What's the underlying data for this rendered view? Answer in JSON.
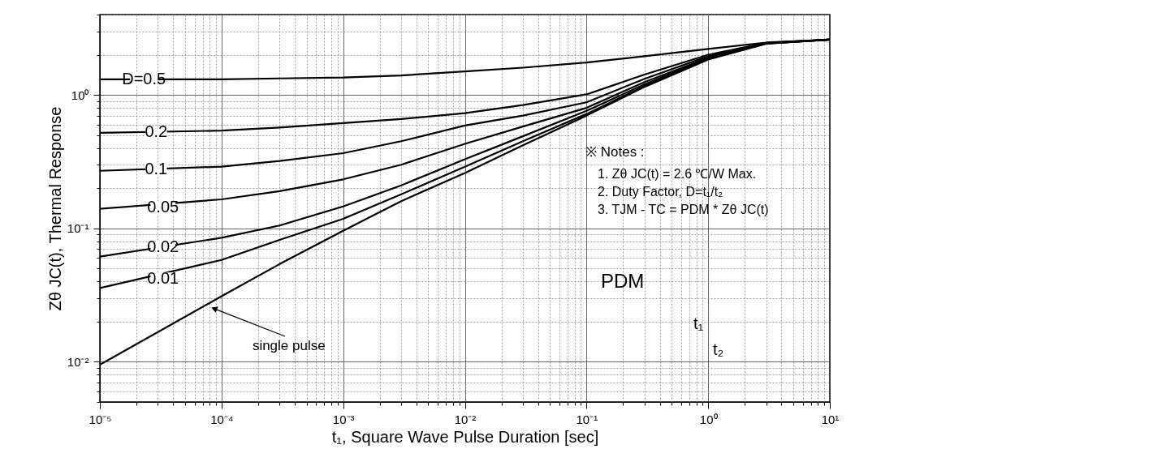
{
  "chart_data": {
    "type": "line",
    "xlabel": "t₁, Square Wave Pulse Duration [sec]",
    "ylabel": "Zθ JC(t), Thermal Response",
    "log": "xy",
    "grid": true,
    "marker": "none",
    "line_style": "solid",
    "x": [
      1e-05,
      0.0001,
      0.0003,
      0.001,
      0.003,
      0.01,
      0.03,
      0.1,
      0.3,
      1,
      3,
      10
    ],
    "series": [
      {
        "color": "#000000",
        "values": [
          1.31,
          1.31,
          1.33,
          1.35,
          1.4,
          1.5,
          1.6,
          1.75,
          1.95,
          2.21,
          2.47,
          2.6
        ]
      },
      {
        "color": "#000000",
        "values": [
          0.52,
          0.54,
          0.57,
          0.615,
          0.66,
          0.73,
          0.84,
          1.01,
          1.42,
          2.0,
          2.46,
          2.6
        ]
      },
      {
        "color": "#000000",
        "values": [
          0.27,
          0.29,
          0.32,
          0.366,
          0.45,
          0.59,
          0.7,
          0.88,
          1.32,
          1.95,
          2.45,
          2.6
        ]
      },
      {
        "color": "#000000",
        "values": [
          0.14,
          0.165,
          0.19,
          0.233,
          0.3,
          0.43,
          0.58,
          0.8,
          1.25,
          1.9,
          2.44,
          2.6
        ]
      },
      {
        "color": "#000000",
        "values": [
          0.0615,
          0.085,
          0.105,
          0.146,
          0.21,
          0.33,
          0.49,
          0.76,
          1.2,
          1.88,
          2.43,
          2.6
        ]
      },
      {
        "color": "#000000",
        "values": [
          0.0357,
          0.058,
          0.082,
          0.118,
          0.18,
          0.29,
          0.45,
          0.72,
          1.17,
          1.86,
          2.43,
          2.6
        ]
      },
      {
        "color": "#000000",
        "values": [
          0.0095,
          0.031,
          0.054,
          0.096,
          0.16,
          0.26,
          0.42,
          0.7,
          1.15,
          1.84,
          2.42,
          2.6
        ]
      }
    ],
    "xlim": [
      1e-05,
      10
    ],
    "ylim": [
      0.005,
      4
    ],
    "xticks": [
      {
        "value": 1e-05,
        "label": "10⁻⁵"
      },
      {
        "value": 2e-05,
        "label": null
      },
      {
        "value": 3e-05,
        "label": null
      },
      {
        "value": 4e-05,
        "label": null
      },
      {
        "value": 5e-05,
        "label": null
      },
      {
        "value": 6e-05,
        "label": null
      },
      {
        "value": 7e-05,
        "label": null
      },
      {
        "value": 8e-05,
        "label": null
      },
      {
        "value": 9e-05,
        "label": null
      },
      {
        "value": 0.0001,
        "label": "10⁻⁴"
      },
      {
        "value": 0.0002,
        "label": null
      },
      {
        "value": 0.0003,
        "label": null
      },
      {
        "value": 0.0004,
        "label": null
      },
      {
        "value": 0.0005,
        "label": null
      },
      {
        "value": 0.0006,
        "label": null
      },
      {
        "value": 0.0007,
        "label": null
      },
      {
        "value": 0.0008,
        "label": null
      },
      {
        "value": 0.0009,
        "label": null
      },
      {
        "value": 0.001,
        "label": "10⁻³"
      },
      {
        "value": 0.002,
        "label": null
      },
      {
        "value": 0.003,
        "label": null
      },
      {
        "value": 0.004,
        "label": null
      },
      {
        "value": 0.005,
        "label": null
      },
      {
        "value": 0.006,
        "label": null
      },
      {
        "value": 0.007,
        "label": null
      },
      {
        "value": 0.008,
        "label": null
      },
      {
        "value": 0.009,
        "label": null
      },
      {
        "value": 0.01,
        "label": "10⁻²"
      },
      {
        "value": 0.02,
        "label": null
      },
      {
        "value": 0.03,
        "label": null
      },
      {
        "value": 0.04,
        "label": null
      },
      {
        "value": 0.05,
        "label": null
      },
      {
        "value": 0.06,
        "label": null
      },
      {
        "value": 0.07,
        "label": null
      },
      {
        "value": 0.08,
        "label": null
      },
      {
        "value": 0.09,
        "label": null
      },
      {
        "value": 0.1,
        "label": "10⁻¹"
      },
      {
        "value": 0.2,
        "label": null
      },
      {
        "value": 0.3,
        "label": null
      },
      {
        "value": 0.4,
        "label": null
      },
      {
        "value": 0.5,
        "label": null
      },
      {
        "value": 0.6,
        "label": null
      },
      {
        "value": 0.7,
        "label": null
      },
      {
        "value": 0.8,
        "label": null
      },
      {
        "value": 0.9,
        "label": null
      },
      {
        "value": 1,
        "label": "10⁰"
      },
      {
        "value": 2,
        "label": null
      },
      {
        "value": 3,
        "label": null
      },
      {
        "value": 4,
        "label": null
      },
      {
        "value": 5,
        "label": null
      },
      {
        "value": 6,
        "label": null
      },
      {
        "value": 7,
        "label": null
      },
      {
        "value": 8,
        "label": null
      },
      {
        "value": 9,
        "label": null
      },
      {
        "value": 10,
        "label": "10¹"
      }
    ],
    "yticks": [
      {
        "value": 0.005,
        "label": null
      },
      {
        "value": 0.006,
        "label": null
      },
      {
        "value": 0.007,
        "label": null
      },
      {
        "value": 0.008,
        "label": null
      },
      {
        "value": 0.009,
        "label": null
      },
      {
        "value": 0.01,
        "label": "10⁻²"
      },
      {
        "value": 0.02,
        "label": null
      },
      {
        "value": 0.03,
        "label": null
      },
      {
        "value": 0.04,
        "label": null
      },
      {
        "value": 0.05,
        "label": null
      },
      {
        "value": 0.06,
        "label": null
      },
      {
        "value": 0.07,
        "label": null
      },
      {
        "value": 0.08,
        "label": null
      },
      {
        "value": 0.09,
        "label": null
      },
      {
        "value": 0.1,
        "label": "10⁻¹"
      },
      {
        "value": 0.2,
        "label": null
      },
      {
        "value": 0.3,
        "label": null
      },
      {
        "value": 0.4,
        "label": null
      },
      {
        "value": 0.5,
        "label": null
      },
      {
        "value": 0.6,
        "label": null
      },
      {
        "value": 0.7,
        "label": null
      },
      {
        "value": 0.8,
        "label": null
      },
      {
        "value": 0.9,
        "label": null
      },
      {
        "value": 1,
        "label": "10⁰"
      },
      {
        "value": 2,
        "label": null
      },
      {
        "value": 3,
        "label": null
      },
      {
        "value": 4,
        "label": null
      }
    ],
    "annotations": [
      {
        "text": "D=0.5",
        "x": 2.3e-05,
        "y": 1.31
      },
      {
        "text": "0.2",
        "x": 2.9e-05,
        "y": 0.525
      },
      {
        "text": "0.1",
        "x": 2.9e-05,
        "y": 0.275
      },
      {
        "text": "0.05",
        "x": 3.3e-05,
        "y": 0.143
      },
      {
        "text": "0.02",
        "x": 3.3e-05,
        "y": 0.072
      },
      {
        "text": "0.01",
        "x": 3.3e-05,
        "y": 0.042
      },
      {
        "text": "single pulse",
        "x": 8.7e-05,
        "y": 0.025
      },
      "※ Notes :",
      "1. Zθ JC(t) = 2.6 ℃/W Max.",
      "2. Duty Factor, D=t₁/t₂",
      "3. TJM - TC = PDM * Zθ JC(t)",
      "PDM",
      "t₁",
      "t₂"
    ]
  }
}
